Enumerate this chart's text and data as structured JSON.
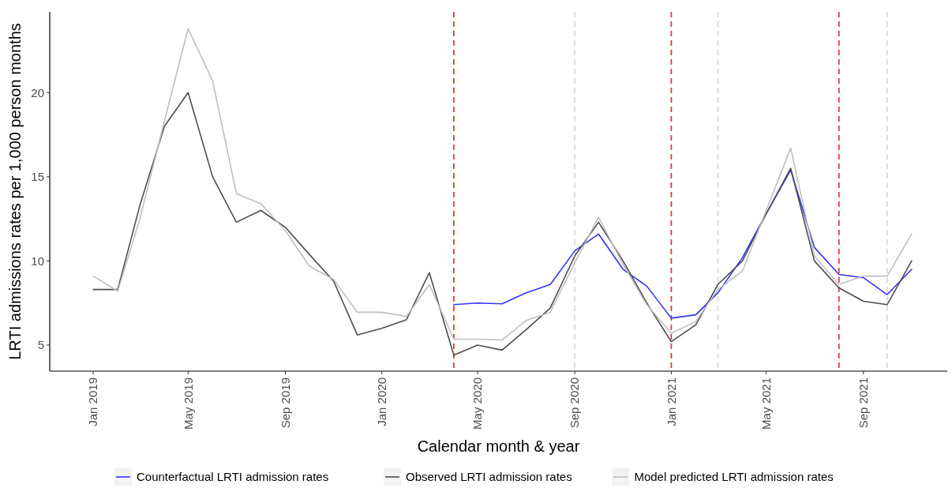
{
  "chart_data": {
    "type": "line",
    "xlabel": "Calendar month & year",
    "ylabel": "LRTI admissions rates per 1,000 person months",
    "x": [
      "2019-01",
      "2019-02",
      "2019-03",
      "2019-04",
      "2019-05",
      "2019-06",
      "2019-07",
      "2019-08",
      "2019-09",
      "2019-10",
      "2019-11",
      "2019-12",
      "2020-01",
      "2020-02",
      "2020-03",
      "2020-04",
      "2020-05",
      "2020-06",
      "2020-07",
      "2020-08",
      "2020-09",
      "2020-10",
      "2020-11",
      "2020-12",
      "2021-01",
      "2021-02",
      "2021-03",
      "2021-04",
      "2021-05",
      "2021-06",
      "2021-07",
      "2021-08",
      "2021-09",
      "2021-10",
      "2021-11"
    ],
    "series": [
      {
        "name": "Counterfactual LRTI admission rates",
        "color": "#3333ff",
        "x": [
          "2020-04",
          "2020-05",
          "2020-06",
          "2020-07",
          "2020-08",
          "2020-09",
          "2020-10",
          "2020-11",
          "2020-12",
          "2021-01",
          "2021-02",
          "2021-03",
          "2021-04",
          "2021-05",
          "2021-06",
          "2021-07",
          "2021-08",
          "2021-09",
          "2021-10",
          "2021-11"
        ],
        "values": [
          7.4,
          7.5,
          7.45,
          8.1,
          8.6,
          10.6,
          11.6,
          9.5,
          8.5,
          6.6,
          6.8,
          8.1,
          10.2,
          12.8,
          15.4,
          10.8,
          9.2,
          9.0,
          8.0,
          9.5
        ]
      },
      {
        "name": "Observed LRTI admission rates",
        "color": "#4d4d4d",
        "values": [
          8.3,
          8.3,
          13.3,
          18.0,
          20.0,
          15.0,
          12.3,
          13.0,
          12.0,
          10.4,
          8.8,
          5.6,
          6.0,
          6.5,
          9.3,
          4.4,
          5.0,
          4.7,
          5.9,
          7.2,
          10.3,
          12.3,
          10.0,
          7.5,
          5.2,
          6.2,
          8.6,
          10.0,
          12.8,
          15.5,
          10.0,
          8.4,
          7.6,
          7.4,
          10.0
        ]
      },
      {
        "name": "Model predicted LRTI admission rates",
        "color": "#bfbfbf",
        "values": [
          9.1,
          8.2,
          12.5,
          18.3,
          23.8,
          20.7,
          14.0,
          13.4,
          11.8,
          9.7,
          8.9,
          6.95,
          6.95,
          6.7,
          8.6,
          5.35,
          5.35,
          5.3,
          6.45,
          6.95,
          9.9,
          12.6,
          9.8,
          7.4,
          5.7,
          6.4,
          8.3,
          9.4,
          13.0,
          16.7,
          10.3,
          8.6,
          9.1,
          9.1,
          11.6
        ]
      }
    ],
    "xlim": [
      "2018-11-07",
      "2021-12-16"
    ],
    "ylim": [
      3.45,
      24.8
    ],
    "xticks": [
      {
        "value": "2019-01",
        "label": "Jan 2019"
      },
      {
        "value": "2019-05",
        "label": "May 2019"
      },
      {
        "value": "2019-09",
        "label": "Sep 2019"
      },
      {
        "value": "2020-01",
        "label": "Jan 2020"
      },
      {
        "value": "2020-05",
        "label": "May 2020"
      },
      {
        "value": "2020-09",
        "label": "Sep 2020"
      },
      {
        "value": "2021-01",
        "label": "Jan 2021"
      },
      {
        "value": "2021-05",
        "label": "May 2021"
      },
      {
        "value": "2021-09",
        "label": "Sep 2021"
      }
    ],
    "yticks": [
      5,
      10,
      15,
      20
    ],
    "ref_lines": [
      {
        "axis": "x",
        "value": "2020-04",
        "color": "#e03c3c",
        "line_style": "dashed"
      },
      {
        "axis": "x",
        "value": "2021-01",
        "color": "#e03c3c",
        "line_style": "dashed"
      },
      {
        "axis": "x",
        "value": "2021-08",
        "color": "#e03c3c",
        "line_style": "dashed"
      },
      {
        "axis": "x",
        "value": "2020-09",
        "color": "#d9d9d9",
        "line_style": "dashed"
      },
      {
        "axis": "x",
        "value": "2021-03",
        "color": "#d9d9d9",
        "line_style": "dashed"
      },
      {
        "axis": "x",
        "value": "2021-10",
        "color": "#d9d9d9",
        "line_style": "dashed"
      }
    ],
    "grid": false,
    "legend": "bottom",
    "line_style": "solid",
    "marker": "none"
  }
}
